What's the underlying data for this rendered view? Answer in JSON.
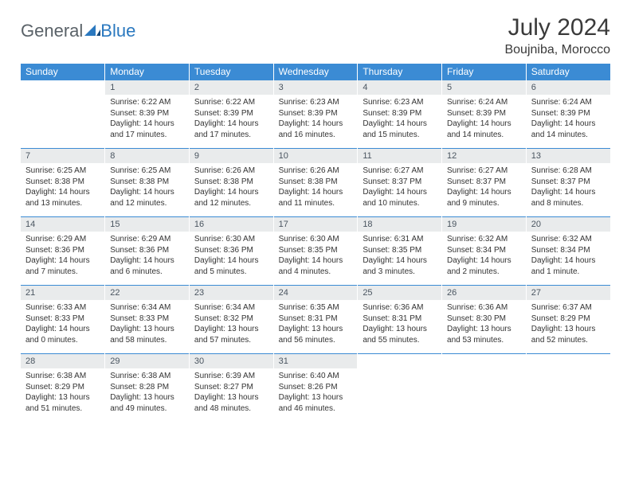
{
  "logo": {
    "part1": "General",
    "part2": "Blue"
  },
  "title": "July 2024",
  "location": "Boujniba, Morocco",
  "colors": {
    "header_bg": "#3b8bd4",
    "header_text": "#ffffff",
    "numcell_bg": "#e9ebec",
    "numcell_text": "#4a5560",
    "border_accent": "#3b8bd4",
    "body_text": "#333333",
    "logo_gray": "#5a6268",
    "logo_blue": "#2a78bf",
    "page_bg": "#ffffff"
  },
  "fonts": {
    "title_size_pt": 30,
    "location_size_pt": 16,
    "dow_size_pt": 12,
    "daynum_size_pt": 11,
    "body_size_pt": 10
  },
  "dow": [
    "Sunday",
    "Monday",
    "Tuesday",
    "Wednesday",
    "Thursday",
    "Friday",
    "Saturday"
  ],
  "weeks": [
    {
      "nums": [
        "",
        "1",
        "2",
        "3",
        "4",
        "5",
        "6"
      ],
      "cells": [
        {
          "sunrise": "",
          "sunset": "",
          "daylight": ""
        },
        {
          "sunrise": "Sunrise: 6:22 AM",
          "sunset": "Sunset: 8:39 PM",
          "daylight": "Daylight: 14 hours and 17 minutes."
        },
        {
          "sunrise": "Sunrise: 6:22 AM",
          "sunset": "Sunset: 8:39 PM",
          "daylight": "Daylight: 14 hours and 17 minutes."
        },
        {
          "sunrise": "Sunrise: 6:23 AM",
          "sunset": "Sunset: 8:39 PM",
          "daylight": "Daylight: 14 hours and 16 minutes."
        },
        {
          "sunrise": "Sunrise: 6:23 AM",
          "sunset": "Sunset: 8:39 PM",
          "daylight": "Daylight: 14 hours and 15 minutes."
        },
        {
          "sunrise": "Sunrise: 6:24 AM",
          "sunset": "Sunset: 8:39 PM",
          "daylight": "Daylight: 14 hours and 14 minutes."
        },
        {
          "sunrise": "Sunrise: 6:24 AM",
          "sunset": "Sunset: 8:39 PM",
          "daylight": "Daylight: 14 hours and 14 minutes."
        }
      ]
    },
    {
      "nums": [
        "7",
        "8",
        "9",
        "10",
        "11",
        "12",
        "13"
      ],
      "cells": [
        {
          "sunrise": "Sunrise: 6:25 AM",
          "sunset": "Sunset: 8:38 PM",
          "daylight": "Daylight: 14 hours and 13 minutes."
        },
        {
          "sunrise": "Sunrise: 6:25 AM",
          "sunset": "Sunset: 8:38 PM",
          "daylight": "Daylight: 14 hours and 12 minutes."
        },
        {
          "sunrise": "Sunrise: 6:26 AM",
          "sunset": "Sunset: 8:38 PM",
          "daylight": "Daylight: 14 hours and 12 minutes."
        },
        {
          "sunrise": "Sunrise: 6:26 AM",
          "sunset": "Sunset: 8:38 PM",
          "daylight": "Daylight: 14 hours and 11 minutes."
        },
        {
          "sunrise": "Sunrise: 6:27 AM",
          "sunset": "Sunset: 8:37 PM",
          "daylight": "Daylight: 14 hours and 10 minutes."
        },
        {
          "sunrise": "Sunrise: 6:27 AM",
          "sunset": "Sunset: 8:37 PM",
          "daylight": "Daylight: 14 hours and 9 minutes."
        },
        {
          "sunrise": "Sunrise: 6:28 AM",
          "sunset": "Sunset: 8:37 PM",
          "daylight": "Daylight: 14 hours and 8 minutes."
        }
      ]
    },
    {
      "nums": [
        "14",
        "15",
        "16",
        "17",
        "18",
        "19",
        "20"
      ],
      "cells": [
        {
          "sunrise": "Sunrise: 6:29 AM",
          "sunset": "Sunset: 8:36 PM",
          "daylight": "Daylight: 14 hours and 7 minutes."
        },
        {
          "sunrise": "Sunrise: 6:29 AM",
          "sunset": "Sunset: 8:36 PM",
          "daylight": "Daylight: 14 hours and 6 minutes."
        },
        {
          "sunrise": "Sunrise: 6:30 AM",
          "sunset": "Sunset: 8:36 PM",
          "daylight": "Daylight: 14 hours and 5 minutes."
        },
        {
          "sunrise": "Sunrise: 6:30 AM",
          "sunset": "Sunset: 8:35 PM",
          "daylight": "Daylight: 14 hours and 4 minutes."
        },
        {
          "sunrise": "Sunrise: 6:31 AM",
          "sunset": "Sunset: 8:35 PM",
          "daylight": "Daylight: 14 hours and 3 minutes."
        },
        {
          "sunrise": "Sunrise: 6:32 AM",
          "sunset": "Sunset: 8:34 PM",
          "daylight": "Daylight: 14 hours and 2 minutes."
        },
        {
          "sunrise": "Sunrise: 6:32 AM",
          "sunset": "Sunset: 8:34 PM",
          "daylight": "Daylight: 14 hours and 1 minute."
        }
      ]
    },
    {
      "nums": [
        "21",
        "22",
        "23",
        "24",
        "25",
        "26",
        "27"
      ],
      "cells": [
        {
          "sunrise": "Sunrise: 6:33 AM",
          "sunset": "Sunset: 8:33 PM",
          "daylight": "Daylight: 14 hours and 0 minutes."
        },
        {
          "sunrise": "Sunrise: 6:34 AM",
          "sunset": "Sunset: 8:33 PM",
          "daylight": "Daylight: 13 hours and 58 minutes."
        },
        {
          "sunrise": "Sunrise: 6:34 AM",
          "sunset": "Sunset: 8:32 PM",
          "daylight": "Daylight: 13 hours and 57 minutes."
        },
        {
          "sunrise": "Sunrise: 6:35 AM",
          "sunset": "Sunset: 8:31 PM",
          "daylight": "Daylight: 13 hours and 56 minutes."
        },
        {
          "sunrise": "Sunrise: 6:36 AM",
          "sunset": "Sunset: 8:31 PM",
          "daylight": "Daylight: 13 hours and 55 minutes."
        },
        {
          "sunrise": "Sunrise: 6:36 AM",
          "sunset": "Sunset: 8:30 PM",
          "daylight": "Daylight: 13 hours and 53 minutes."
        },
        {
          "sunrise": "Sunrise: 6:37 AM",
          "sunset": "Sunset: 8:29 PM",
          "daylight": "Daylight: 13 hours and 52 minutes."
        }
      ]
    },
    {
      "nums": [
        "28",
        "29",
        "30",
        "31",
        "",
        "",
        ""
      ],
      "cells": [
        {
          "sunrise": "Sunrise: 6:38 AM",
          "sunset": "Sunset: 8:29 PM",
          "daylight": "Daylight: 13 hours and 51 minutes."
        },
        {
          "sunrise": "Sunrise: 6:38 AM",
          "sunset": "Sunset: 8:28 PM",
          "daylight": "Daylight: 13 hours and 49 minutes."
        },
        {
          "sunrise": "Sunrise: 6:39 AM",
          "sunset": "Sunset: 8:27 PM",
          "daylight": "Daylight: 13 hours and 48 minutes."
        },
        {
          "sunrise": "Sunrise: 6:40 AM",
          "sunset": "Sunset: 8:26 PM",
          "daylight": "Daylight: 13 hours and 46 minutes."
        },
        {
          "sunrise": "",
          "sunset": "",
          "daylight": ""
        },
        {
          "sunrise": "",
          "sunset": "",
          "daylight": ""
        },
        {
          "sunrise": "",
          "sunset": "",
          "daylight": ""
        }
      ]
    }
  ]
}
